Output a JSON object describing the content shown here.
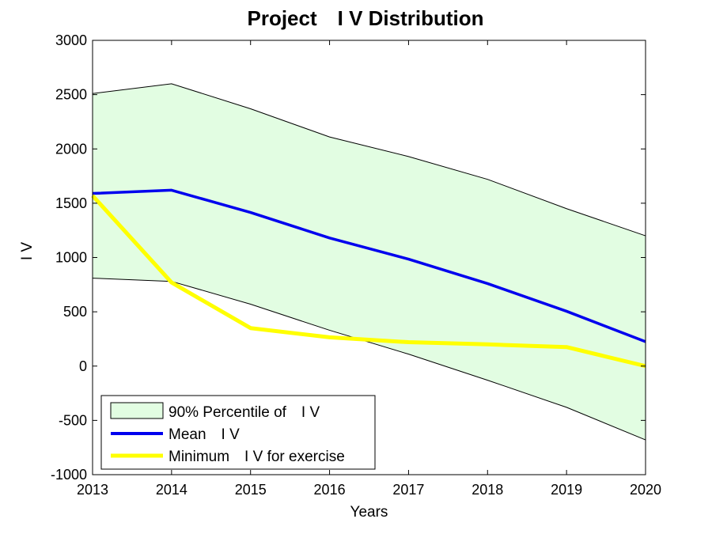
{
  "chart_data": {
    "type": "area",
    "title": "Project　I V Distribution",
    "xlabel": "Years",
    "ylabel": "I V",
    "x": [
      2013,
      2014,
      2015,
      2016,
      2017,
      2018,
      2019,
      2020
    ],
    "xlim": [
      2013,
      2020
    ],
    "ylim": [
      -1000,
      3000
    ],
    "xticks": [
      "2013",
      "2014",
      "2015",
      "2016",
      "2017",
      "2018",
      "2019",
      "2020"
    ],
    "yticks": [
      "-1000",
      "-500",
      "0",
      "500",
      "1000",
      "1500",
      "2000",
      "2500",
      "3000"
    ],
    "grid": false,
    "legend_position": "bottom-left",
    "band": {
      "name": "90% Percentile of　I V",
      "upper": [
        2510,
        2600,
        2370,
        2110,
        1930,
        1720,
        1450,
        1200
      ],
      "lower": [
        810,
        780,
        570,
        330,
        110,
        -130,
        -380,
        -680
      ],
      "fill_color": "#e2fde2",
      "edge_color": "#000000"
    },
    "series": [
      {
        "name": "Mean　I V",
        "values": [
          1590,
          1620,
          1415,
          1180,
          985,
          760,
          505,
          225
        ],
        "color": "#0000ee"
      },
      {
        "name": "Minimum　I V for exercise",
        "values": [
          1570,
          770,
          350,
          265,
          220,
          200,
          175,
          0
        ],
        "color": "#ffff00"
      }
    ]
  }
}
